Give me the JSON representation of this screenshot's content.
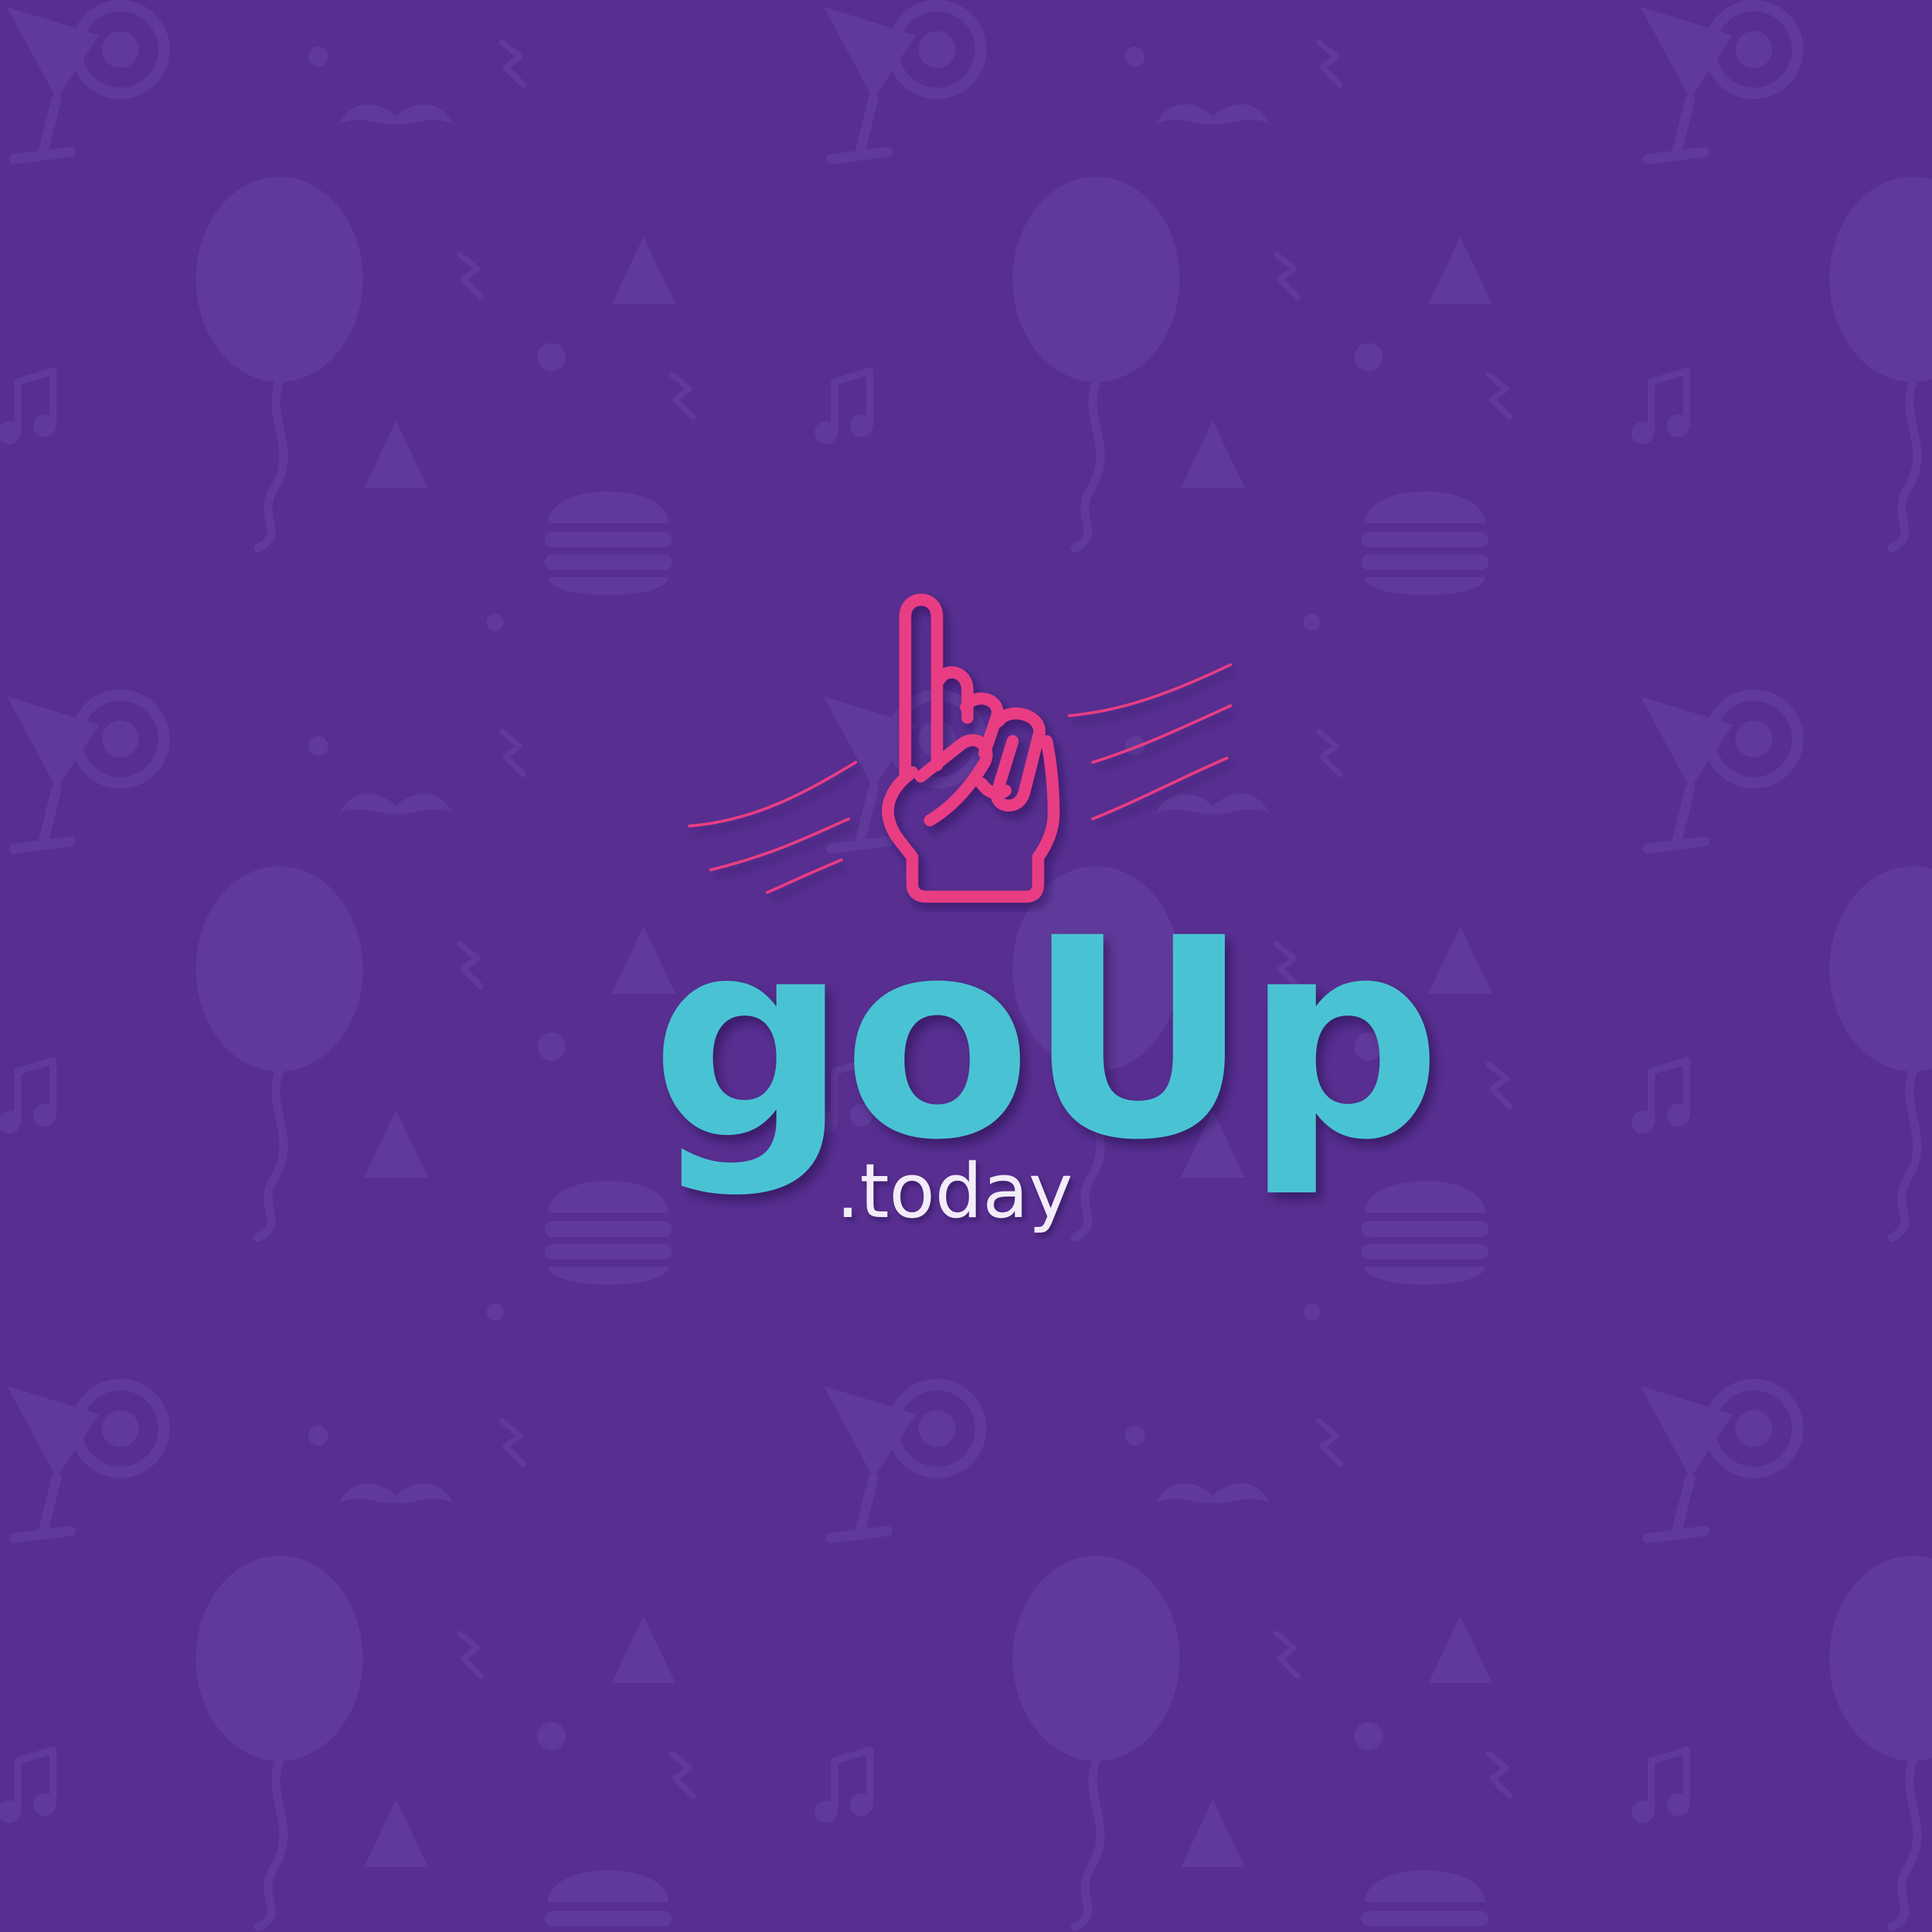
{
  "colors": {
    "background": "#582f91",
    "pattern": "#603a9a",
    "accent": "#e83e83",
    "brand": "#49c3d3",
    "domain": "#f3ecf8"
  },
  "icons": {
    "logo": "hand-pointing-up-icon",
    "pattern": [
      "balloon-icon",
      "cocktail-glass-icon",
      "burger-icon",
      "music-note-icon",
      "party-hat-icon",
      "mustache-icon"
    ]
  },
  "brand": {
    "name": "goUp",
    "domain": ".today"
  }
}
